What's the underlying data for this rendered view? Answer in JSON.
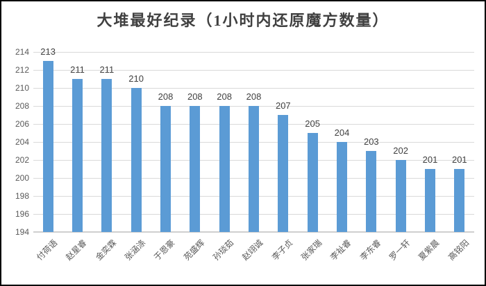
{
  "chart_data": {
    "type": "bar",
    "title": "大堆最好纪录（1小时内还原魔方数量）",
    "categories": [
      "付荷语",
      "赵星睿",
      "金奕霖",
      "张涵涤",
      "于恩豪",
      "苑盛辉",
      "孙琰茹",
      "赵翊诚",
      "李子贞",
      "张家瑞",
      "李祉睿",
      "李东睿",
      "罗一轩",
      "夏紫晨",
      "高铭阳"
    ],
    "values": [
      213,
      211,
      211,
      210,
      208,
      208,
      208,
      208,
      207,
      205,
      204,
      203,
      202,
      201,
      201
    ],
    "xlabel": "",
    "ylabel": "",
    "ylim": [
      194,
      214
    ],
    "yticks": [
      194,
      196,
      198,
      200,
      202,
      204,
      206,
      208,
      210,
      212,
      214
    ],
    "grid": true,
    "legend": "none",
    "data_labels": true,
    "bar_color": "#5b9bd5",
    "gridline_color": "#d9d9d9",
    "axis_text_color": "#595959",
    "data_label_color": "#404040",
    "title_color": "#404040"
  }
}
